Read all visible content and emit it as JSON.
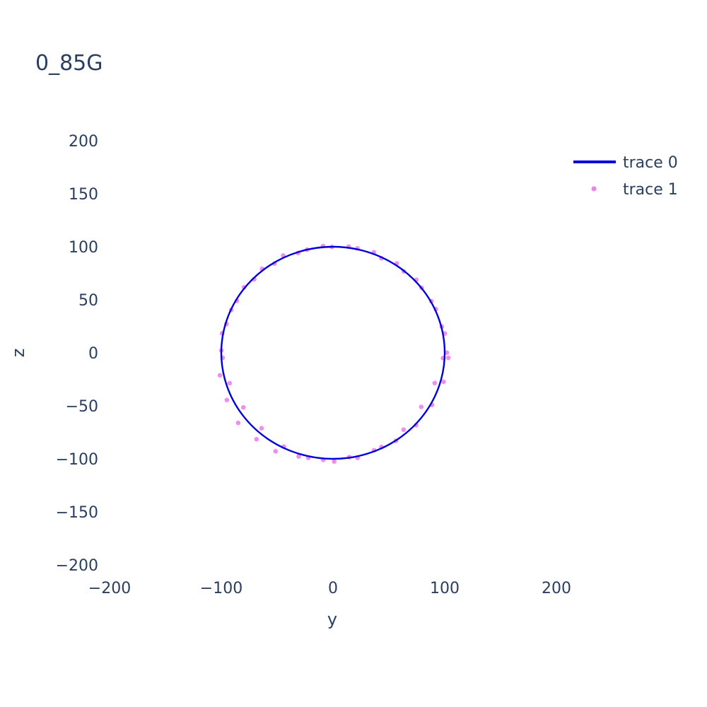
{
  "chart_data": {
    "type": "scatter",
    "title": "0_85G",
    "xlabel": "y",
    "ylabel": "z",
    "xlim": [
      -200,
      260
    ],
    "ylim": [
      -200,
      200
    ],
    "x_ticks": [
      -200,
      -100,
      0,
      100,
      200
    ],
    "y_ticks": [
      -200,
      -150,
      -100,
      -50,
      0,
      50,
      100,
      150,
      200
    ],
    "x_tick_labels": [
      "−200",
      "−100",
      "0",
      "100",
      "200"
    ],
    "y_tick_labels": [
      "−200",
      "−150",
      "−100",
      "−50",
      "0",
      "50",
      "100",
      "150",
      "200"
    ],
    "grid": false,
    "legend": "top-right",
    "colors": {
      "text": "#2a3f5f",
      "trace0": "#0000dd",
      "trace1": "#ee82ee"
    },
    "series": [
      {
        "name": "trace 0",
        "mode": "lines",
        "x": [
          100.0,
          95.1,
          80.9,
          58.8,
          30.9,
          0.0,
          -30.9,
          -58.8,
          -80.9,
          -95.1,
          -100.0,
          -95.1,
          -80.9,
          -58.8,
          -30.9,
          0.0,
          30.9,
          58.8,
          80.9,
          95.1,
          100.0
        ],
        "y": [
          0.0,
          30.9,
          58.8,
          80.9,
          95.1,
          100.0,
          95.1,
          80.9,
          58.8,
          30.9,
          0.0,
          -30.9,
          -58.8,
          -80.9,
          -95.1,
          -100.0,
          -95.1,
          -80.9,
          -58.8,
          -30.9,
          0.0
        ]
      },
      {
        "name": "trace 1",
        "mode": "markers",
        "x": [
          102.0,
          97.4,
          88.0,
          74.6,
          57.1,
          36.6,
          14.1,
          -8.9,
          -31.3,
          -52.4,
          -70.6,
          -86.0,
          -95.4,
          -100.0,
          -101.2,
          -95.0,
          -84.9,
          -68.4,
          -51.4,
          -30.7,
          -8.7,
          14.6,
          36.8,
          56.3,
          74.4,
          88.7,
          99.0,
          103.2,
          100.1,
          92.1,
          79.4,
          63.3,
          43.3,
          21.9,
          -0.9,
          -23.2,
          -44.6,
          -63.5,
          -79.7,
          -91.1,
          -99.3,
          -98.8,
          -92.5,
          -80.2,
          -63.9,
          -44.0,
          -22.1,
          1.1,
          22.0,
          43.4,
          63.2,
          79.0,
          91.1,
          98.5
        ],
        "y": [
          0.1,
          24.7,
          48.6,
          68.8,
          84.2,
          94.8,
          100.1,
          100.6,
          94.1,
          84.1,
          69.3,
          49.0,
          27.1,
          2.2,
          -21.2,
          -44.5,
          -66.1,
          -81.5,
          -92.9,
          -97.7,
          -101.0,
          -98.4,
          -91.9,
          -83.0,
          -68.2,
          -49.2,
          -27.4,
          -4.8,
          18.2,
          41.2,
          61.2,
          76.8,
          89.1,
          98.5,
          99.8,
          97.3,
          91.7,
          79.1,
          61.8,
          40.4,
          18.4,
          -4.7,
          -28.7,
          -51.5,
          -71.1,
          -88.5,
          -99.0,
          -102.5,
          -99.1,
          -88.9,
          -72.5,
          -51.0,
          -28.5,
          -5.0
        ]
      }
    ]
  }
}
